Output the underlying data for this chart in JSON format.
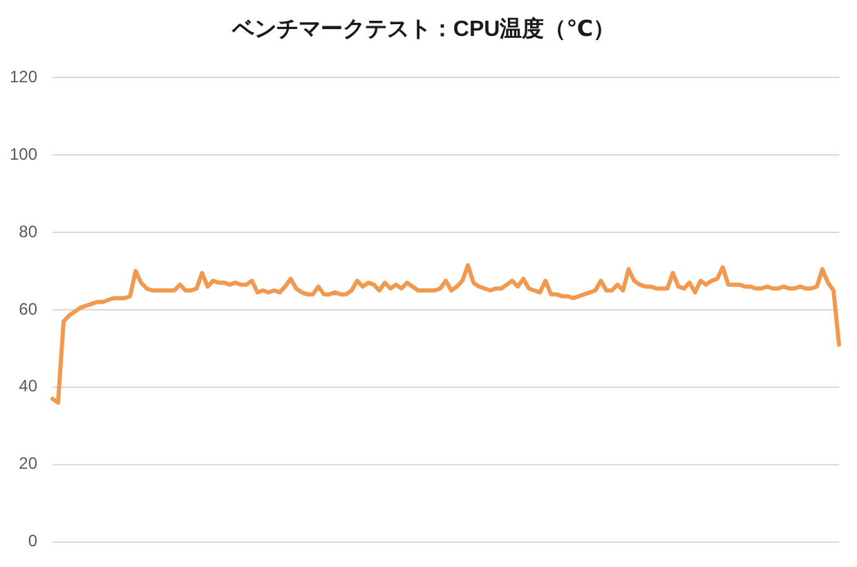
{
  "chart_data": {
    "type": "line",
    "title": "ベンチマークテスト：CPU温度（℃）",
    "categories": [
      null,
      null,
      null,
      null,
      null,
      null,
      null,
      null,
      null,
      null,
      null,
      null,
      null,
      null,
      null,
      null,
      null,
      null,
      null,
      null,
      null,
      null,
      null,
      null,
      null,
      null,
      null,
      null,
      null,
      null,
      null,
      null,
      null,
      null,
      null,
      null,
      null,
      null,
      null,
      null,
      null,
      null,
      null,
      null,
      null,
      null,
      null,
      null,
      null,
      null,
      null,
      null,
      null,
      null,
      null,
      null,
      null,
      null,
      null,
      null,
      null,
      null,
      null,
      null,
      null,
      null,
      null,
      null,
      null,
      null,
      null,
      null,
      null,
      null,
      null,
      null,
      null,
      null,
      null,
      null,
      null,
      null,
      null,
      null,
      null,
      null,
      null,
      null,
      null,
      null,
      null,
      null,
      null,
      null,
      null,
      null,
      null,
      null,
      null,
      null,
      null,
      null,
      null,
      null,
      null,
      null,
      null,
      null,
      null,
      null,
      null,
      null,
      null,
      null,
      null,
      null,
      null,
      null,
      null,
      null,
      null,
      null,
      null,
      null,
      null,
      null,
      null,
      null,
      null,
      null,
      null,
      null,
      null,
      null,
      null,
      null,
      null,
      null,
      null,
      null,
      null,
      null,
      null
    ],
    "values": [
      37,
      36,
      57,
      58.5,
      59.5,
      60.5,
      61,
      61.5,
      62,
      62,
      62.5,
      63,
      63,
      63,
      63.5,
      70,
      67,
      65.5,
      65,
      65,
      65,
      65,
      65,
      66.5,
      65,
      65,
      65.5,
      69.5,
      66,
      67.5,
      67,
      67,
      66.5,
      67,
      66.5,
      66.5,
      67.5,
      64.5,
      65,
      64.5,
      65,
      64.5,
      66,
      68,
      65.5,
      64.5,
      64,
      64,
      66,
      64,
      64,
      64.5,
      64,
      64,
      65,
      67.5,
      66,
      67,
      66.5,
      65,
      67,
      65.5,
      66.5,
      65.5,
      67,
      66,
      65,
      65,
      65,
      65,
      65.5,
      67.5,
      65,
      66,
      67.5,
      71.5,
      67,
      66,
      65.5,
      65,
      65.5,
      65.5,
      66.5,
      67.5,
      66,
      68,
      65.5,
      65,
      64.5,
      67.5,
      64,
      64,
      63.5,
      63.5,
      63,
      63.5,
      64,
      64.5,
      65,
      67.5,
      65,
      65,
      66.5,
      65,
      70.5,
      67.5,
      66.5,
      66,
      66,
      65.5,
      65.5,
      65.5,
      69.5,
      66,
      65.5,
      67,
      64.5,
      67.5,
      66.5,
      67.5,
      68,
      71,
      66.5,
      66.5,
      66.5,
      66,
      66,
      65.5,
      65.5,
      66,
      65.5,
      65.5,
      66,
      65.5,
      65.5,
      66,
      65.5,
      65.5,
      66,
      70.5,
      67,
      65,
      51
    ],
    "color": "#f0994f",
    "ylim": [
      0,
      120
    ],
    "yticks": [
      0,
      20,
      40,
      60,
      80,
      100,
      120
    ],
    "grid": "y",
    "tick_labels": "y",
    "marker": "none"
  }
}
